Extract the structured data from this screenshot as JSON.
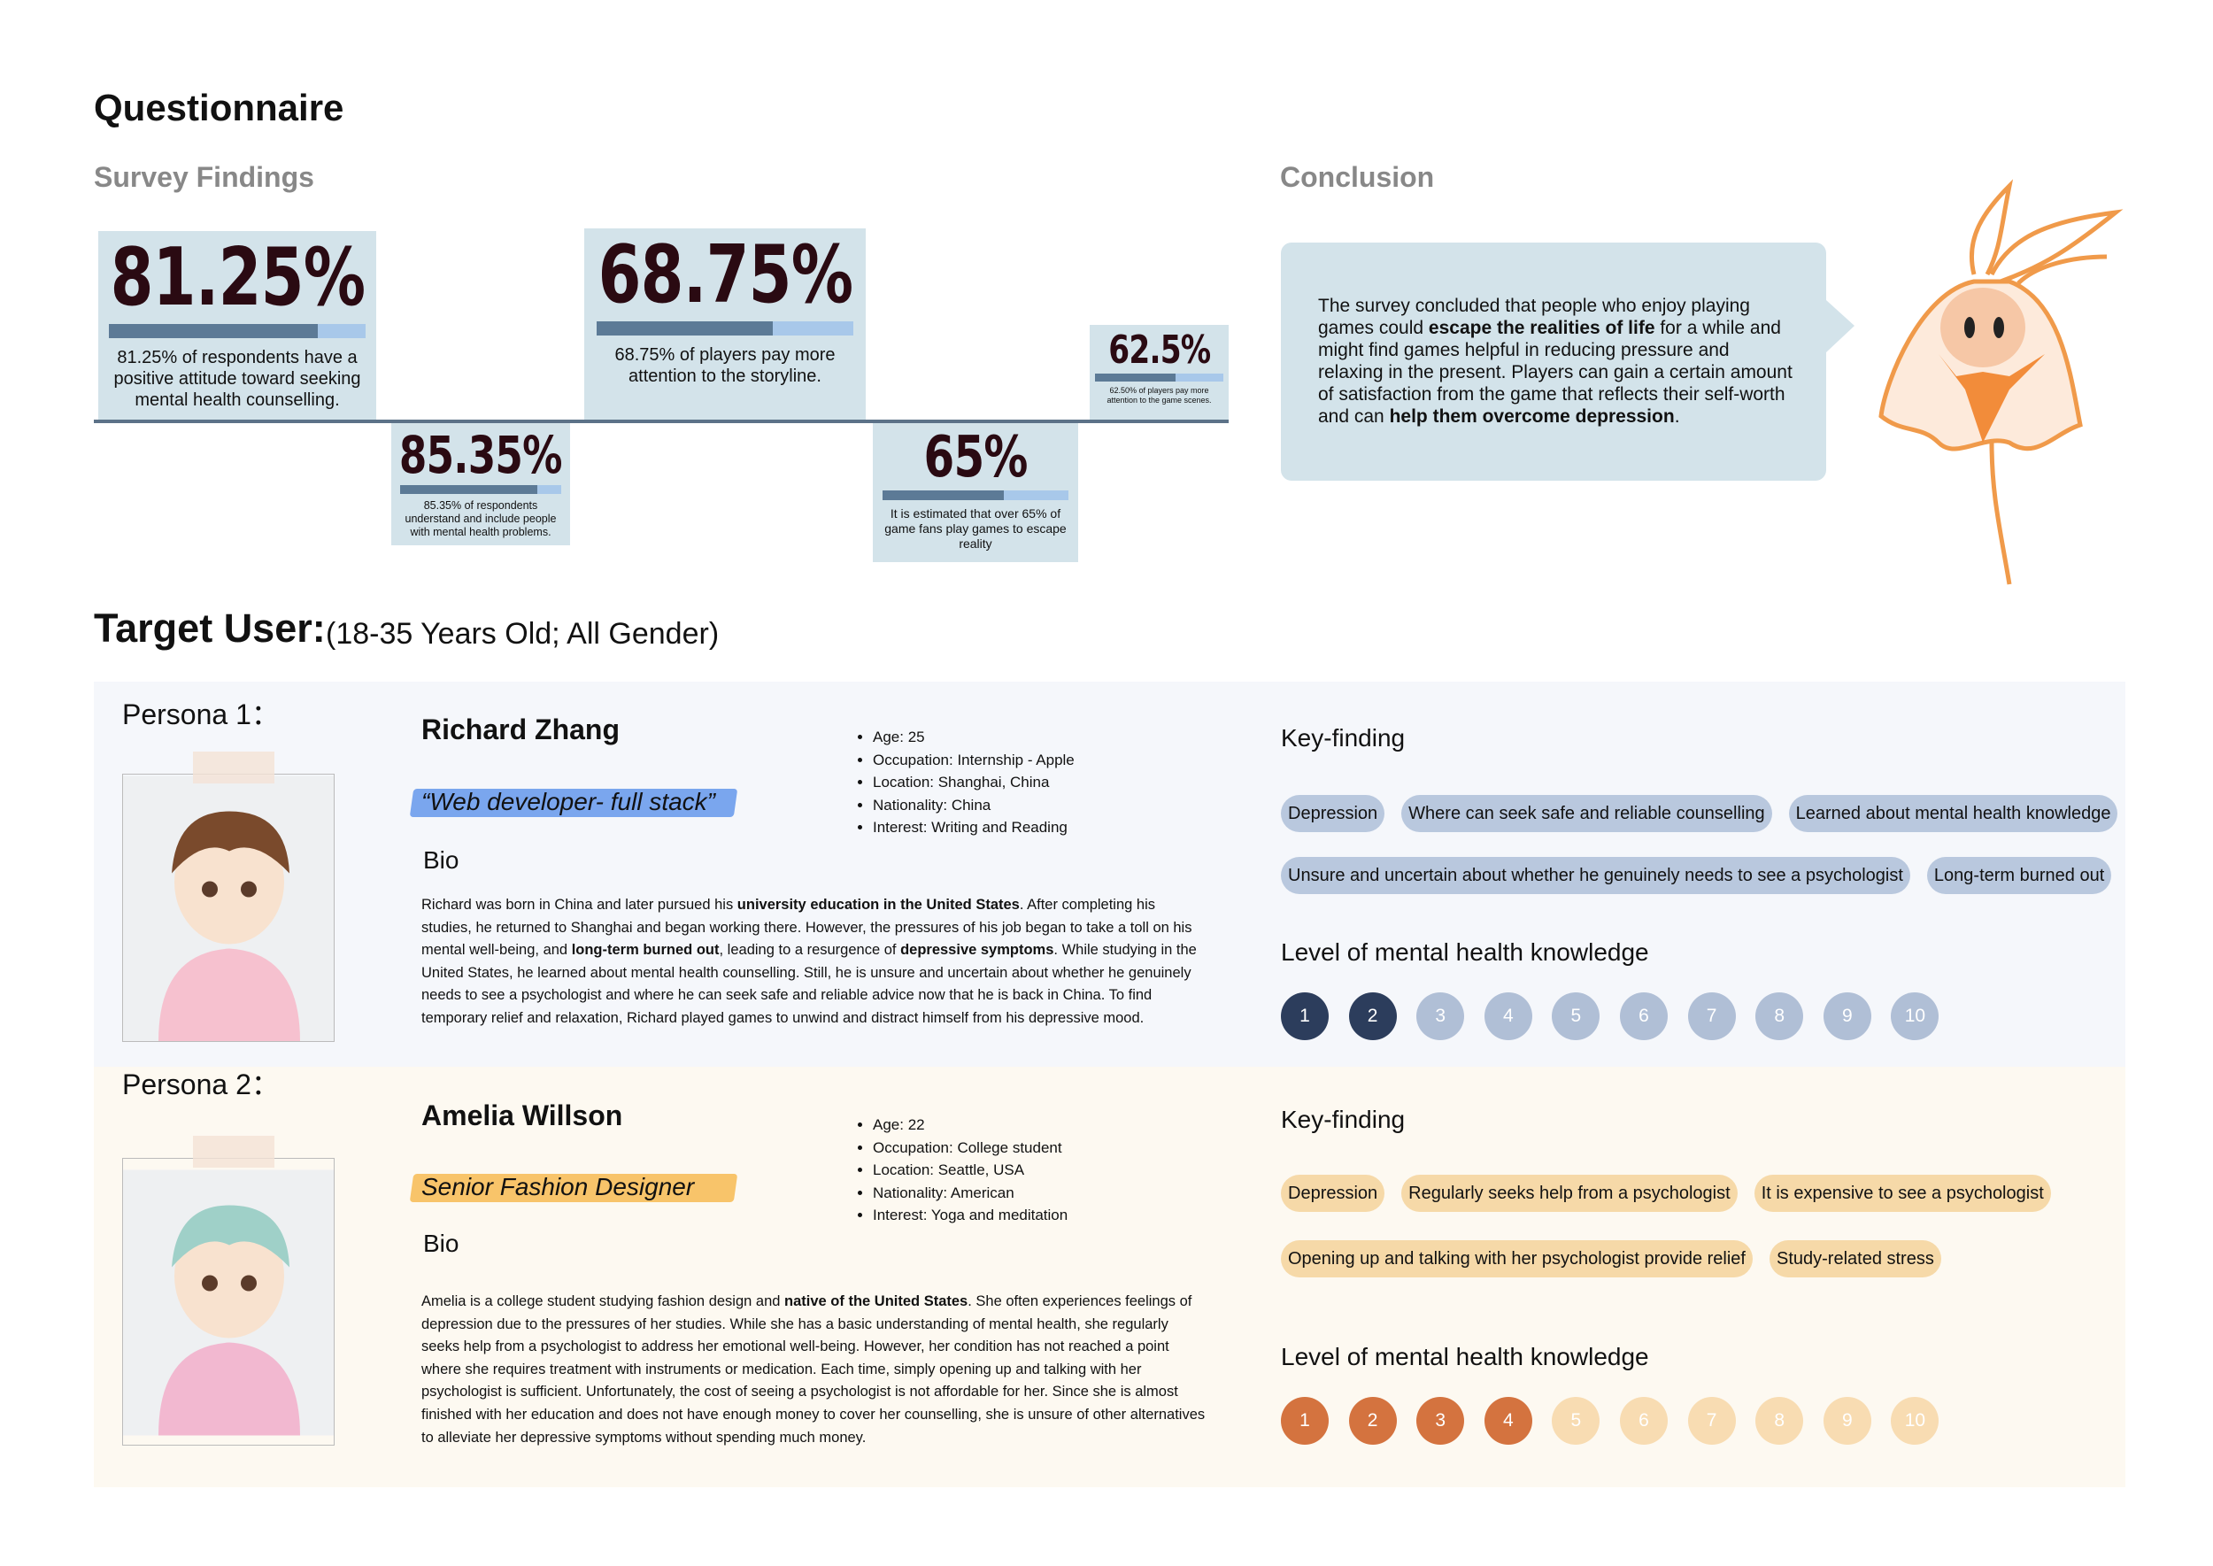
{
  "header": {
    "title": "Questionnaire"
  },
  "survey": {
    "title": "Survey Findings",
    "box_color": "#d3e3ea",
    "bar_color": "#5c7a96",
    "bar_track": "#a8c8ea",
    "number_color": "#2a0a12",
    "stats": [
      {
        "value": 81.25,
        "label": "81.25%",
        "description": "81.25% of respondents have a positive attitude toward seeking mental health counselling."
      },
      {
        "value": 85.35,
        "label": "85.35%",
        "description": "85.35% of respondents understand and include people with mental health problems."
      },
      {
        "value": 68.75,
        "label": "68.75%",
        "description": "68.75% of players pay more attention to the storyline."
      },
      {
        "value": 65,
        "label": "65%",
        "description": "It is estimated that over 65% of game fans play games to escape reality"
      },
      {
        "value": 62.5,
        "label": "62.5%",
        "description": "62.50% of players pay more attention to the game scenes."
      }
    ]
  },
  "conclusion": {
    "title": "Conclusion",
    "text": [
      {
        "text": "The survey concluded that people who enjoy playing games could "
      },
      {
        "text": "escape the realities of life",
        "bold": true
      },
      {
        "text": " for a while and might find games helpful in reducing pressure and relaxing in the present. Players can gain a certain amount of satisfaction from the game that reflects their self-worth and can "
      },
      {
        "text": "help them overcome depression",
        "bold": true
      },
      {
        "text": "."
      }
    ]
  },
  "target_user": {
    "title": "Target User:",
    "subtitle": "(18-35 Years Old; All Gender)"
  },
  "personas": [
    {
      "label": "Persona 1：",
      "name": "Richard Zhang",
      "tagline": "“Web developer- full stack”",
      "bio_title": "Bio",
      "bio": [
        {
          "text": "Richard was born in China and later pursued his "
        },
        {
          "text": "university education in the United States",
          "bold": true
        },
        {
          "text": ". After completing his studies, he returned to Shanghai and began working there. However, the pressures of his job began to take a toll on his mental well-being, and "
        },
        {
          "text": "long-term burned out",
          "bold": true
        },
        {
          "text": ", leading to a resurgence of "
        },
        {
          "text": "depressive symptoms",
          "bold": true
        },
        {
          "text": ". While studying in the United States, he learned about mental health counselling. Still, he is unsure and uncertain about whether he genuinely needs to see a psychologist and where he can seek safe and reliable advice now that he is back in China. To find temporary relief and relaxation, Richard played games to unwind and distract himself from his depressive mood."
        }
      ],
      "details": [
        "Age: 25",
        "Occupation: Internship - Apple",
        "Location: Shanghai, China",
        "Nationality: China",
        "Interest: Writing and Reading"
      ],
      "key_finding_title": "Key-finding",
      "key_findings": [
        [
          "Depression",
          "Where can seek safe and reliable counselling",
          "Learned about mental health knowledge"
        ],
        [
          "Unsure and uncertain about whether he genuinely needs to see a psychologist",
          "Long-term burned out"
        ]
      ],
      "knowledge_title": "Level of mental health knowledge",
      "levels": [
        1,
        2,
        3,
        4,
        5,
        6,
        7,
        8,
        9,
        10
      ],
      "selected_level": 2,
      "colors": {
        "background": "#f5f7fb",
        "highlight": "#7aa6ee",
        "tag": "#b9c8de",
        "filled": "#2c3d5c",
        "empty": "#b0bfd6"
      }
    },
    {
      "label": "Persona 2：",
      "name": "Amelia Willson",
      "tagline": "Senior Fashion Designer",
      "bio_title": "Bio",
      "bio": [
        {
          "text": "Amelia is a college student studying fashion design and "
        },
        {
          "text": "native of the United States",
          "bold": true
        },
        {
          "text": ". She often experiences feelings of depression due to the pressures of her studies. While she has a basic understanding of mental health, she regularly seeks help from a psychologist to address her emotional well-being. However, her condition has not reached a point where she requires treatment with instruments or medication. Each time, simply opening up and talking with her psychologist is sufficient. Unfortunately, the cost of seeing a psychologist is not affordable for her. Since she is almost finished with her education and does not have enough money to cover her counselling, she is unsure of other alternatives to alleviate her depressive symptoms without spending much money."
        }
      ],
      "details": [
        "Age: 22",
        "Occupation: College student",
        "Location: Seattle, USA",
        "Nationality: American",
        "Interest: Yoga and meditation"
      ],
      "key_finding_title": "Key-finding",
      "key_findings": [
        [
          "Depression",
          "Regularly seeks help from a psychologist",
          "It is expensive to see a psychologist"
        ],
        [
          "Opening up and talking with her psychologist provide relief",
          "Study-related stress"
        ]
      ],
      "knowledge_title": "Level of mental health knowledge",
      "levels": [
        1,
        2,
        3,
        4,
        5,
        6,
        7,
        8,
        9,
        10
      ],
      "selected_level": 4,
      "colors": {
        "background": "#fdf9f1",
        "highlight": "#f8c46a",
        "tag": "#f6d9a8",
        "filled": "#d4733f",
        "empty": "#f8dcb2"
      }
    }
  ]
}
